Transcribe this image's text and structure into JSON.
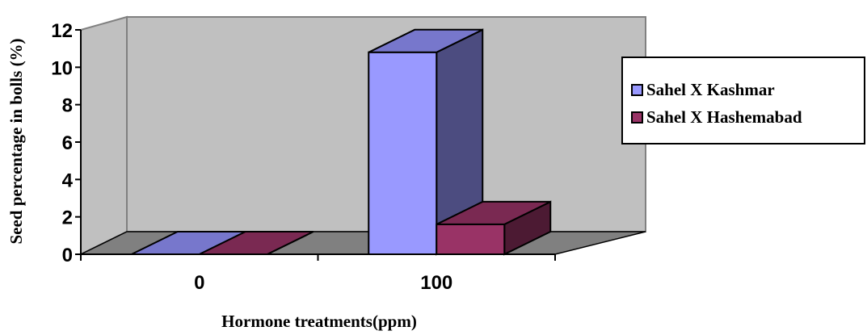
{
  "chart_data": {
    "type": "bar",
    "style": "3d-clustered-column",
    "categories": [
      "0",
      "100"
    ],
    "series": [
      {
        "name": "Sahel X Kashmar",
        "values": [
          0,
          10.8
        ],
        "color": "#9999ff",
        "side_color": "#4c4c80",
        "top_color": "#7777cc"
      },
      {
        "name": "Sahel X Hashemabad",
        "values": [
          0,
          1.6
        ],
        "color": "#993366",
        "side_color": "#4c1a33",
        "top_color": "#7a2952"
      }
    ],
    "xlabel": "Hormone treatments(ppm)",
    "ylabel": "Seed percentage in bolls (%)",
    "ylim": [
      0,
      12
    ],
    "yticks": [
      "0",
      "2",
      "4",
      "6",
      "8",
      "10",
      "12"
    ],
    "grid": false,
    "legend": "right",
    "colors": {
      "wall": "#c0c0c0",
      "floor": "#808080",
      "wall_border": "#808080"
    }
  }
}
